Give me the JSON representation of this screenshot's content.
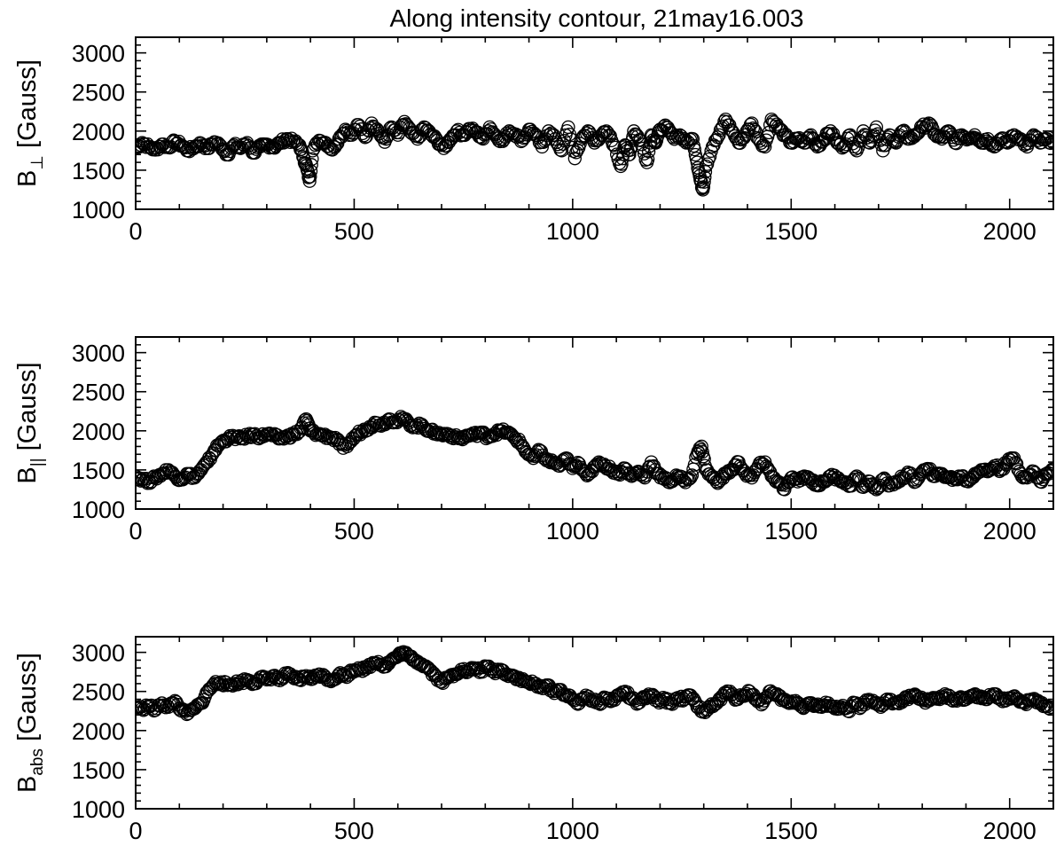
{
  "chart_data": [
    {
      "type": "scatter",
      "title": "Along intensity contour, 21may16.003",
      "ylabel": {
        "symbol": "B",
        "subscript": "⊥",
        "unit": "[Gauss]"
      },
      "xlim": [
        0,
        2100
      ],
      "ylim": [
        1000,
        3200
      ],
      "xticks": [
        0,
        500,
        1000,
        1500,
        2000
      ],
      "yticks": [
        1000,
        1500,
        2000,
        2500,
        3000
      ],
      "marker": "open-circle",
      "grid": false,
      "series": [
        {
          "x": [
            0,
            15,
            30,
            45,
            60,
            75,
            90,
            105,
            120,
            135,
            150,
            165,
            180,
            195,
            210,
            225,
            240,
            255,
            270,
            285,
            300,
            315,
            330,
            345,
            360,
            375,
            385,
            392,
            398,
            405,
            420,
            435,
            450,
            465,
            480,
            495,
            510,
            525,
            540,
            555,
            570,
            585,
            600,
            615,
            630,
            645,
            660,
            675,
            690,
            705,
            720,
            735,
            750,
            765,
            780,
            795,
            810,
            825,
            840,
            855,
            870,
            885,
            900,
            915,
            930,
            945,
            960,
            975,
            990,
            1005,
            1020,
            1035,
            1050,
            1065,
            1080,
            1095,
            1110,
            1120,
            1130,
            1140,
            1155,
            1170,
            1180,
            1190,
            1200,
            1215,
            1230,
            1245,
            1260,
            1275,
            1285,
            1292,
            1298,
            1305,
            1320,
            1335,
            1350,
            1365,
            1380,
            1395,
            1410,
            1425,
            1440,
            1455,
            1470,
            1485,
            1500,
            1515,
            1530,
            1545,
            1560,
            1575,
            1590,
            1605,
            1620,
            1635,
            1650,
            1665,
            1680,
            1695,
            1710,
            1725,
            1740,
            1755,
            1770,
            1785,
            1800,
            1815,
            1830,
            1845,
            1860,
            1875,
            1890,
            1905,
            1920,
            1935,
            1950,
            1965,
            1980,
            1995,
            2010,
            2025,
            2040,
            2055,
            2070,
            2085,
            2100
          ],
          "y": [
            1780,
            1850,
            1800,
            1760,
            1830,
            1790,
            1870,
            1820,
            1750,
            1800,
            1840,
            1780,
            1860,
            1810,
            1700,
            1820,
            1780,
            1850,
            1720,
            1800,
            1830,
            1790,
            1850,
            1900,
            1870,
            1820,
            1650,
            1520,
            1360,
            1750,
            1880,
            1850,
            1760,
            1900,
            2020,
            1950,
            2080,
            1920,
            2100,
            2000,
            1860,
            2050,
            1950,
            2120,
            1980,
            1900,
            2050,
            1960,
            1880,
            1780,
            1900,
            2000,
            1950,
            2030,
            1980,
            1900,
            2050,
            1930,
            1870,
            2000,
            1960,
            1880,
            2020,
            1950,
            1800,
            2000,
            1900,
            1750,
            2050,
            1650,
            1900,
            2000,
            1850,
            1950,
            1980,
            1820,
            1550,
            1820,
            1700,
            2000,
            1880,
            1600,
            1950,
            1850,
            2020,
            2050,
            1920,
            1950,
            1850,
            1900,
            1600,
            1380,
            1250,
            1550,
            1800,
            1950,
            2150,
            2000,
            1850,
            1950,
            2100,
            1900,
            1800,
            2150,
            2050,
            1950,
            1850,
            1900,
            1850,
            1950,
            1800,
            1900,
            2000,
            1850,
            1800,
            1950,
            1750,
            2000,
            1850,
            2050,
            1750,
            1950,
            1850,
            2000,
            1900,
            1950,
            2050,
            2100,
            1950,
            1900,
            2000,
            1850,
            1950,
            1900,
            1950,
            1850,
            1900,
            1800,
            1900,
            1850,
            1950,
            1900,
            1800,
            1950,
            1850,
            1900,
            1850
          ]
        }
      ]
    },
    {
      "type": "scatter",
      "title": "",
      "ylabel": {
        "symbol": "B",
        "subscript": "||",
        "unit": "[Gauss]"
      },
      "xlim": [
        0,
        2100
      ],
      "ylim": [
        1000,
        3200
      ],
      "xticks": [
        0,
        500,
        1000,
        1500,
        2000
      ],
      "yticks": [
        1000,
        1500,
        2000,
        2500,
        3000
      ],
      "marker": "open-circle",
      "grid": false,
      "series": [
        {
          "x": [
            0,
            15,
            30,
            45,
            60,
            75,
            90,
            105,
            120,
            135,
            150,
            165,
            180,
            195,
            210,
            225,
            240,
            255,
            270,
            285,
            300,
            315,
            330,
            345,
            360,
            375,
            390,
            400,
            415,
            430,
            445,
            460,
            475,
            490,
            505,
            520,
            535,
            550,
            565,
            580,
            595,
            610,
            625,
            640,
            655,
            670,
            685,
            700,
            715,
            730,
            745,
            760,
            775,
            790,
            805,
            820,
            835,
            850,
            865,
            880,
            895,
            910,
            925,
            940,
            955,
            970,
            985,
            1000,
            1015,
            1030,
            1045,
            1060,
            1075,
            1090,
            1105,
            1120,
            1135,
            1150,
            1165,
            1180,
            1195,
            1210,
            1225,
            1240,
            1255,
            1270,
            1285,
            1295,
            1305,
            1320,
            1335,
            1350,
            1365,
            1380,
            1395,
            1410,
            1425,
            1440,
            1455,
            1470,
            1485,
            1500,
            1515,
            1530,
            1545,
            1560,
            1575,
            1590,
            1605,
            1620,
            1635,
            1650,
            1665,
            1680,
            1695,
            1710,
            1725,
            1740,
            1755,
            1770,
            1785,
            1800,
            1815,
            1830,
            1845,
            1860,
            1875,
            1890,
            1905,
            1920,
            1935,
            1950,
            1965,
            1980,
            1995,
            2010,
            2025,
            2040,
            2055,
            2070,
            2085,
            2100
          ],
          "y": [
            1420,
            1380,
            1350,
            1400,
            1450,
            1500,
            1420,
            1380,
            1450,
            1400,
            1500,
            1600,
            1750,
            1850,
            1900,
            1920,
            1900,
            1930,
            1950,
            1920,
            1960,
            1940,
            1900,
            1920,
            1950,
            1990,
            2150,
            2000,
            1960,
            1940,
            1920,
            1880,
            1780,
            1850,
            1950,
            2000,
            2050,
            2100,
            2080,
            2150,
            2120,
            2160,
            2100,
            2050,
            2080,
            2000,
            1980,
            1950,
            1960,
            1920,
            1900,
            1940,
            1950,
            1980,
            1920,
            1960,
            2000,
            1980,
            1920,
            1850,
            1720,
            1650,
            1750,
            1620,
            1600,
            1550,
            1650,
            1520,
            1580,
            1450,
            1480,
            1600,
            1550,
            1500,
            1450,
            1520,
            1420,
            1480,
            1400,
            1600,
            1450,
            1380,
            1350,
            1420,
            1360,
            1400,
            1700,
            1800,
            1500,
            1400,
            1350,
            1450,
            1500,
            1600,
            1450,
            1400,
            1550,
            1600,
            1420,
            1350,
            1250,
            1400,
            1350,
            1420,
            1380,
            1300,
            1350,
            1420,
            1400,
            1350,
            1300,
            1420,
            1280,
            1350,
            1250,
            1380,
            1300,
            1350,
            1400,
            1450,
            1350,
            1480,
            1500,
            1420,
            1450,
            1400,
            1380,
            1420,
            1350,
            1450,
            1500,
            1480,
            1550,
            1500,
            1600,
            1650,
            1450,
            1400,
            1480,
            1350,
            1450,
            1500
          ]
        }
      ]
    },
    {
      "type": "scatter",
      "title": "",
      "ylabel": {
        "symbol": "B",
        "subscript": "abs",
        "unit": "[Gauss]"
      },
      "xlim": [
        0,
        2100
      ],
      "ylim": [
        1000,
        3200
      ],
      "xticks": [
        0,
        500,
        1000,
        1500,
        2000
      ],
      "yticks": [
        1000,
        1500,
        2000,
        2500,
        3000
      ],
      "marker": "open-circle",
      "grid": false,
      "series": [
        {
          "x": [
            0,
            15,
            30,
            45,
            60,
            75,
            90,
            105,
            120,
            135,
            150,
            165,
            180,
            195,
            210,
            225,
            240,
            255,
            270,
            285,
            300,
            315,
            330,
            345,
            360,
            375,
            390,
            405,
            420,
            435,
            450,
            465,
            480,
            495,
            510,
            525,
            540,
            555,
            570,
            585,
            600,
            610,
            625,
            640,
            655,
            670,
            685,
            700,
            715,
            730,
            745,
            760,
            775,
            790,
            805,
            820,
            835,
            850,
            865,
            880,
            895,
            910,
            925,
            940,
            955,
            970,
            985,
            1000,
            1015,
            1030,
            1045,
            1060,
            1075,
            1090,
            1105,
            1120,
            1135,
            1150,
            1165,
            1180,
            1195,
            1210,
            1225,
            1240,
            1255,
            1270,
            1285,
            1300,
            1315,
            1330,
            1345,
            1360,
            1375,
            1390,
            1405,
            1420,
            1435,
            1450,
            1465,
            1480,
            1495,
            1510,
            1525,
            1540,
            1555,
            1570,
            1585,
            1600,
            1615,
            1630,
            1645,
            1660,
            1675,
            1690,
            1705,
            1720,
            1735,
            1750,
            1765,
            1780,
            1795,
            1810,
            1825,
            1840,
            1855,
            1870,
            1885,
            1900,
            1915,
            1930,
            1945,
            1960,
            1975,
            1990,
            2005,
            2020,
            2035,
            2050,
            2065,
            2080,
            2095
          ],
          "y": [
            2300,
            2280,
            2320,
            2260,
            2350,
            2300,
            2380,
            2250,
            2220,
            2280,
            2350,
            2500,
            2600,
            2620,
            2580,
            2600,
            2620,
            2650,
            2600,
            2680,
            2650,
            2700,
            2640,
            2720,
            2680,
            2650,
            2700,
            2660,
            2720,
            2680,
            2640,
            2720,
            2700,
            2760,
            2800,
            2780,
            2850,
            2880,
            2820,
            2900,
            2950,
            3000,
            2950,
            2900,
            2850,
            2800,
            2700,
            2620,
            2680,
            2720,
            2780,
            2750,
            2800,
            2760,
            2820,
            2750,
            2780,
            2720,
            2700,
            2650,
            2620,
            2600,
            2550,
            2580,
            2500,
            2520,
            2450,
            2400,
            2350,
            2450,
            2380,
            2350,
            2420,
            2380,
            2450,
            2500,
            2400,
            2350,
            2420,
            2450,
            2380,
            2400,
            2350,
            2420,
            2400,
            2450,
            2300,
            2250,
            2300,
            2350,
            2450,
            2500,
            2400,
            2450,
            2500,
            2400,
            2350,
            2500,
            2450,
            2400,
            2350,
            2380,
            2300,
            2350,
            2320,
            2300,
            2350,
            2280,
            2300,
            2250,
            2350,
            2300,
            2380,
            2350,
            2300,
            2400,
            2350,
            2380,
            2420,
            2450,
            2400,
            2380,
            2420,
            2400,
            2450,
            2380,
            2420,
            2400,
            2450,
            2420,
            2400,
            2450,
            2430,
            2380,
            2420,
            2400,
            2350,
            2400,
            2380,
            2320,
            2300
          ]
        }
      ]
    }
  ]
}
